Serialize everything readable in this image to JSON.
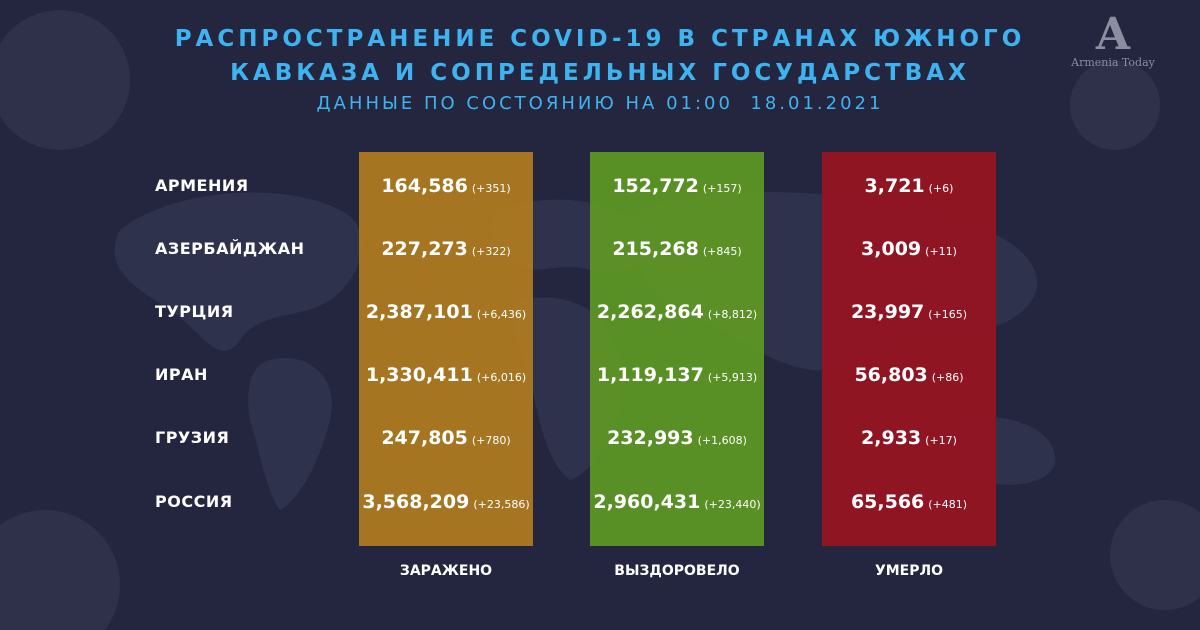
{
  "header": {
    "title_line1": "РАСПРОСТРАНЕНИЕ COVID-19 В СТРАНАХ ЮЖНОГО",
    "title_line2": "КАВКАЗА И СОПРЕДЕЛЬНЫХ ГОСУДАРСТВАХ",
    "subtitle": "ДАННЫЕ ПО СОСТОЯНИЮ НА 01:00  18.01.2021"
  },
  "logo": {
    "text": "Armenia Today"
  },
  "columns": {
    "infected": "ЗАРАЖЕНО",
    "recovered": "ВЫЗДОРОВЕЛО",
    "died": "УМЕРЛО"
  },
  "colors": {
    "title": "#3fb3f0",
    "infected": "#b17c1e",
    "recovered": "#5d9624",
    "died": "#961422",
    "background": "#24263f"
  },
  "rows": [
    {
      "country": "АРМЕНИЯ",
      "infected": "164,586",
      "infected_delta": "(+351)",
      "recovered": "152,772",
      "recovered_delta": "(+157)",
      "died": "3,721",
      "died_delta": "(+6)"
    },
    {
      "country": "АЗЕРБАЙДЖАН",
      "infected": "227,273",
      "infected_delta": "(+322)",
      "recovered": "215,268",
      "recovered_delta": "(+845)",
      "died": "3,009",
      "died_delta": "(+11)"
    },
    {
      "country": "ТУРЦИЯ",
      "infected": "2,387,101",
      "infected_delta": "(+6,436)",
      "recovered": "2,262,864",
      "recovered_delta": "(+8,812)",
      "died": "23,997",
      "died_delta": "(+165)"
    },
    {
      "country": "ИРАН",
      "infected": "1,330,411",
      "infected_delta": "(+6,016)",
      "recovered": "1,119,137",
      "recovered_delta": "(+5,913)",
      "died": "56,803",
      "died_delta": "(+86)"
    },
    {
      "country": "ГРУЗИЯ",
      "infected": "247,805",
      "infected_delta": "(+780)",
      "recovered": "232,993",
      "recovered_delta": "(+1,608)",
      "died": "2,933",
      "died_delta": "(+17)"
    },
    {
      "country": "РОССИЯ",
      "infected": "3,568,209",
      "infected_delta": "(+23,586)",
      "recovered": "2,960,431",
      "recovered_delta": "(+23,440)",
      "died": "65,566",
      "died_delta": "(+481)"
    }
  ]
}
